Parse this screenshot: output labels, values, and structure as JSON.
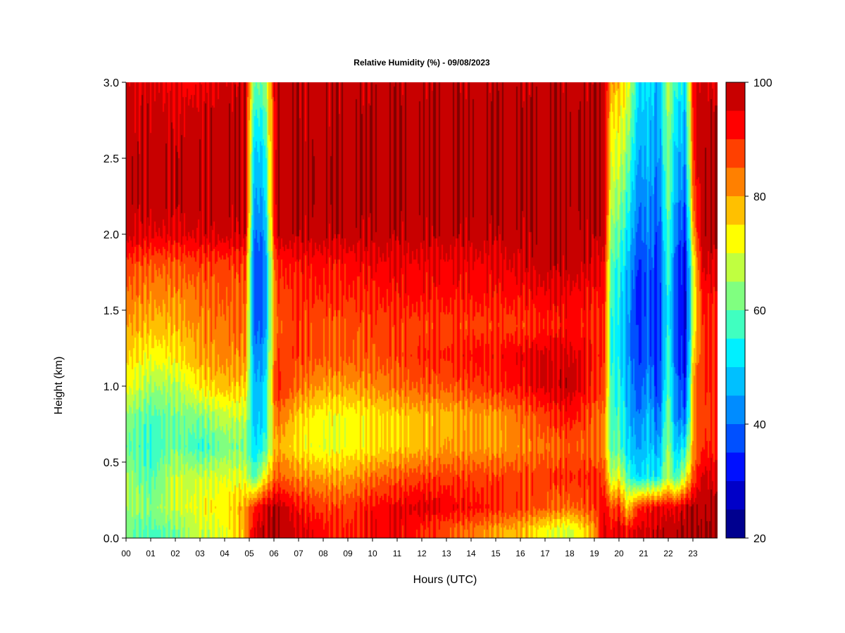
{
  "chart_data": {
    "type": "heatmap",
    "title": "Relative Humidity (%) - 09/08/2023",
    "xlabel": "Hours (UTC)",
    "ylabel": "Height (km)",
    "x_unit": "hours",
    "xlim": [
      0,
      24
    ],
    "ylim": [
      0,
      3.0
    ],
    "xticks": [
      "00",
      "01",
      "02",
      "03",
      "04",
      "05",
      "06",
      "07",
      "08",
      "09",
      "10",
      "11",
      "12",
      "13",
      "14",
      "15",
      "16",
      "17",
      "18",
      "19",
      "20",
      "21",
      "22",
      "23"
    ],
    "yticks": [
      "0.0",
      "0.5",
      "1.0",
      "1.5",
      "2.0",
      "2.5",
      "3.0"
    ],
    "heights": [
      0.05,
      0.2,
      0.4,
      0.6,
      0.8,
      1.0,
      1.2,
      1.4,
      1.6,
      1.8,
      2.0,
      2.2,
      2.5,
      2.8,
      3.0
    ],
    "profiles": [
      {
        "hour": 0.0,
        "rh": [
          62,
          65,
          66,
          60,
          64,
          72,
          76,
          80,
          84,
          88,
          97,
          98,
          98,
          97,
          96
        ]
      },
      {
        "hour": 1.0,
        "rh": [
          58,
          63,
          58,
          56,
          58,
          65,
          72,
          78,
          82,
          86,
          95,
          98,
          98,
          97,
          96
        ]
      },
      {
        "hour": 2.0,
        "rh": [
          62,
          68,
          68,
          62,
          62,
          66,
          74,
          78,
          82,
          86,
          95,
          98,
          98,
          96,
          93
        ]
      },
      {
        "hour": 3.0,
        "rh": [
          68,
          72,
          68,
          56,
          62,
          74,
          80,
          82,
          84,
          88,
          96,
          98,
          98,
          97,
          93
        ]
      },
      {
        "hour": 4.0,
        "rh": [
          70,
          74,
          70,
          62,
          68,
          78,
          82,
          84,
          86,
          88,
          97,
          98,
          98,
          98,
          96
        ]
      },
      {
        "hour": 4.85,
        "rh": [
          80,
          80,
          70,
          62,
          68,
          76,
          82,
          84,
          86,
          88,
          97,
          98,
          98,
          98,
          98
        ]
      },
      {
        "hour": 5.2,
        "rh": [
          95,
          90,
          58,
          50,
          48,
          46,
          42,
          38,
          36,
          36,
          40,
          44,
          48,
          55,
          60
        ]
      },
      {
        "hour": 5.6,
        "rh": [
          98,
          96,
          72,
          55,
          50,
          48,
          44,
          40,
          38,
          38,
          42,
          46,
          50,
          56,
          62
        ]
      },
      {
        "hour": 6.1,
        "rh": [
          100,
          99,
          86,
          80,
          85,
          92,
          88,
          86,
          88,
          90,
          98,
          99,
          99,
          98,
          98
        ]
      },
      {
        "hour": 7.0,
        "rh": [
          96,
          92,
          82,
          74,
          76,
          84,
          88,
          88,
          90,
          92,
          98,
          99,
          99,
          98,
          98
        ]
      },
      {
        "hour": 8.0,
        "rh": [
          92,
          88,
          80,
          70,
          72,
          80,
          86,
          86,
          90,
          92,
          98,
          99,
          99,
          98,
          98
        ]
      },
      {
        "hour": 9.0,
        "rh": [
          90,
          88,
          80,
          72,
          72,
          80,
          86,
          86,
          90,
          92,
          98,
          99,
          99,
          98,
          98
        ]
      },
      {
        "hour": 10.0,
        "rh": [
          94,
          92,
          84,
          74,
          74,
          82,
          86,
          88,
          90,
          94,
          98,
          99,
          99,
          99,
          98
        ]
      },
      {
        "hour": 11.0,
        "rh": [
          94,
          94,
          86,
          76,
          76,
          84,
          88,
          88,
          92,
          94,
          98,
          99,
          99,
          99,
          98
        ]
      },
      {
        "hour": 12.0,
        "rh": [
          90,
          96,
          88,
          78,
          78,
          86,
          90,
          88,
          92,
          94,
          98,
          99,
          99,
          99,
          98
        ]
      },
      {
        "hour": 13.0,
        "rh": [
          86,
          94,
          88,
          80,
          78,
          86,
          90,
          88,
          92,
          94,
          98,
          99,
          99,
          99,
          98
        ]
      },
      {
        "hour": 14.0,
        "rh": [
          84,
          92,
          88,
          80,
          80,
          88,
          92,
          88,
          92,
          94,
          98,
          99,
          99,
          99,
          98
        ]
      },
      {
        "hour": 15.0,
        "rh": [
          80,
          90,
          88,
          80,
          80,
          90,
          92,
          88,
          92,
          94,
          98,
          99,
          99,
          99,
          98
        ]
      },
      {
        "hour": 16.0,
        "rh": [
          78,
          88,
          88,
          82,
          84,
          92,
          94,
          88,
          92,
          96,
          98,
          99,
          99,
          99,
          98
        ]
      },
      {
        "hour": 17.0,
        "rh": [
          72,
          86,
          88,
          84,
          88,
          96,
          96,
          90,
          94,
          98,
          99,
          99,
          99,
          99,
          98
        ]
      },
      {
        "hour": 18.0,
        "rh": [
          68,
          84,
          90,
          86,
          92,
          98,
          96,
          92,
          94,
          98,
          99,
          99,
          99,
          99,
          98
        ]
      },
      {
        "hour": 19.0,
        "rh": [
          80,
          88,
          90,
          84,
          86,
          90,
          92,
          90,
          92,
          96,
          98,
          99,
          99,
          99,
          98
        ]
      },
      {
        "hour": 19.4,
        "rh": [
          96,
          94,
          88,
          82,
          84,
          88,
          90,
          90,
          92,
          94,
          98,
          99,
          99,
          98,
          98
        ]
      },
      {
        "hour": 19.7,
        "rh": [
          92,
          86,
          66,
          58,
          56,
          56,
          54,
          54,
          56,
          58,
          62,
          66,
          70,
          74,
          80
        ]
      },
      {
        "hour": 20.0,
        "rh": [
          96,
          90,
          72,
          60,
          58,
          56,
          52,
          52,
          54,
          56,
          60,
          64,
          70,
          74,
          78
        ]
      },
      {
        "hour": 20.35,
        "rh": [
          92,
          76,
          58,
          50,
          48,
          46,
          44,
          44,
          46,
          48,
          52,
          56,
          62,
          68,
          72
        ]
      },
      {
        "hour": 20.8,
        "rh": [
          96,
          90,
          50,
          44,
          40,
          36,
          34,
          34,
          32,
          34,
          38,
          40,
          44,
          48,
          50
        ]
      },
      {
        "hour": 21.2,
        "rh": [
          96,
          92,
          54,
          50,
          48,
          44,
          40,
          40,
          38,
          40,
          42,
          44,
          48,
          50,
          52
        ]
      },
      {
        "hour": 21.6,
        "rh": [
          98,
          94,
          52,
          44,
          38,
          34,
          32,
          32,
          32,
          34,
          36,
          38,
          42,
          44,
          46
        ]
      },
      {
        "hour": 22.0,
        "rh": [
          98,
          94,
          68,
          66,
          64,
          60,
          58,
          56,
          56,
          58,
          60,
          62,
          64,
          66,
          68
        ]
      },
      {
        "hour": 22.3,
        "rh": [
          98,
          94,
          56,
          48,
          42,
          40,
          38,
          36,
          36,
          38,
          40,
          44,
          48,
          52,
          56
        ]
      },
      {
        "hour": 22.7,
        "rh": [
          100,
          98,
          70,
          54,
          40,
          34,
          30,
          28,
          28,
          30,
          34,
          38,
          44,
          48,
          52
        ]
      },
      {
        "hour": 23.05,
        "rh": [
          100,
          99,
          88,
          82,
          82,
          84,
          78,
          72,
          72,
          74,
          82,
          88,
          92,
          94,
          95
        ]
      },
      {
        "hour": 23.4,
        "rh": [
          100,
          99,
          96,
          90,
          88,
          90,
          90,
          90,
          92,
          96,
          99,
          99,
          99,
          98,
          96
        ]
      },
      {
        "hour": 24.0,
        "rh": [
          100,
          99,
          96,
          90,
          88,
          90,
          90,
          90,
          92,
          96,
          99,
          99,
          99,
          98,
          96
        ]
      }
    ],
    "colorbar": {
      "levels": [
        20,
        25,
        30,
        35,
        40,
        45,
        50,
        55,
        60,
        65,
        70,
        75,
        80,
        85,
        90,
        95,
        100
      ],
      "colors": [
        "#00008f",
        "#0000c8",
        "#0010ff",
        "#0050ff",
        "#008cff",
        "#00c0ff",
        "#00f0ff",
        "#40ffc0",
        "#80ff80",
        "#c0ff40",
        "#ffff00",
        "#ffc000",
        "#ff8000",
        "#ff4000",
        "#ff0000",
        "#c80000",
        "#800000"
      ],
      "ticks": [
        "20",
        "40",
        "60",
        "80",
        "100"
      ],
      "tick_values": [
        20,
        40,
        60,
        80,
        100
      ]
    },
    "grid": false,
    "legend": "colorbar-right"
  }
}
